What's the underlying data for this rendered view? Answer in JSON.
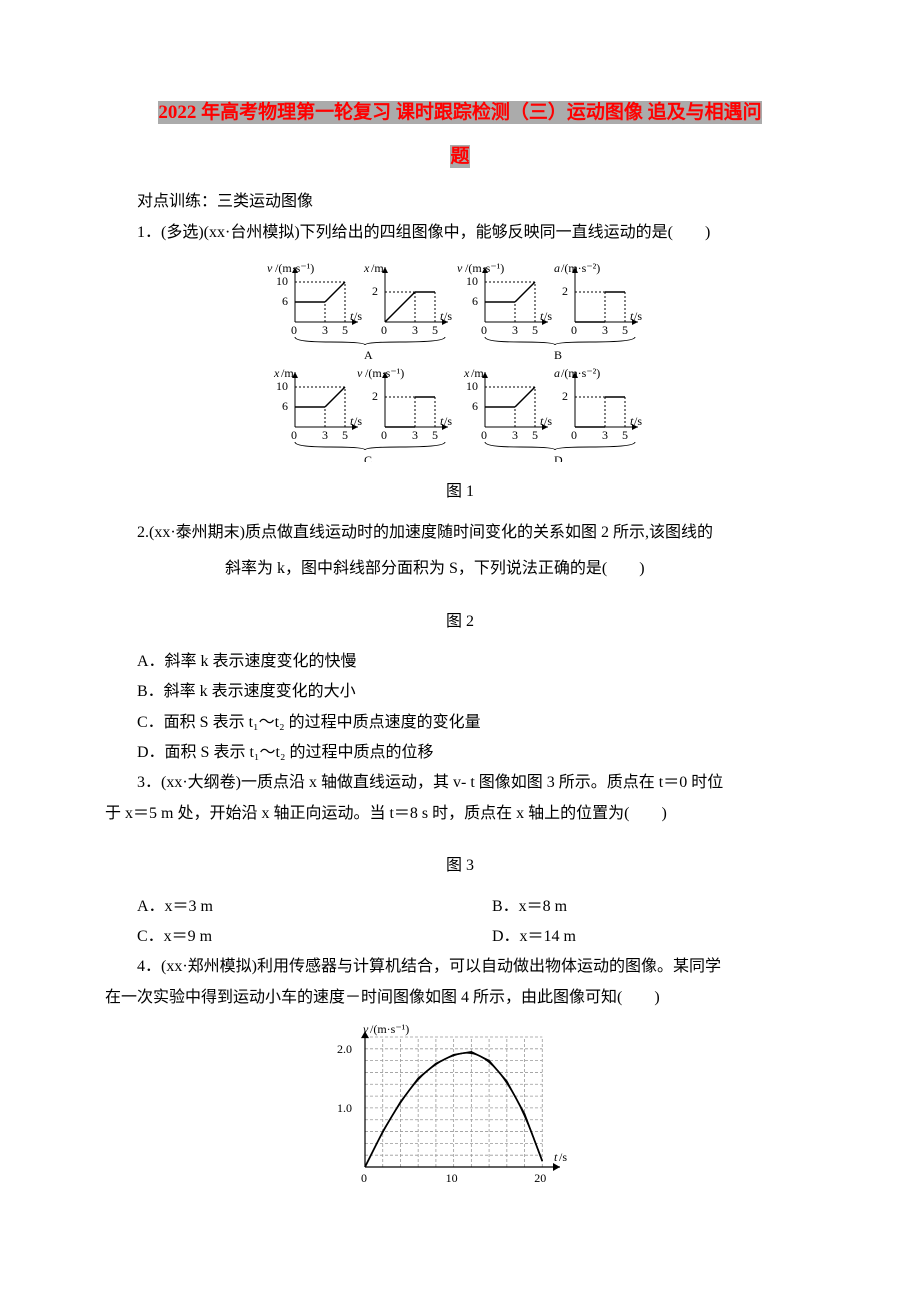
{
  "title": {
    "line1": "2022 年高考物理第一轮复习 课时跟踪检测（三）运动图像 追及与相遇问",
    "line2": "题"
  },
  "section_heading": "对点训练：三类运动图像",
  "q1": {
    "text": "1．(多选)(xx·台州模拟)下列给出的四组图像中，能够反映同一直线运动的是(　　)",
    "figure_label": "图 1",
    "panels": {
      "A": [
        {
          "type": "vt",
          "xlabel": "t/s",
          "ylabel": "v/(m·s⁻¹)",
          "xticks": [
            0,
            3,
            5
          ],
          "yticks": [
            6,
            10
          ],
          "segments": [
            [
              [
                0,
                6
              ],
              [
                3,
                6
              ]
            ],
            [
              [
                3,
                6
              ],
              [
                5,
                10
              ]
            ]
          ]
        },
        {
          "type": "xt",
          "xlabel": "t/s",
          "ylabel": "x/m",
          "xticks": [
            0,
            3,
            5
          ],
          "yticks": [
            2
          ],
          "segments": [
            [
              [
                0,
                0
              ],
              [
                3,
                2
              ]
            ],
            [
              [
                3,
                2
              ],
              [
                5,
                2
              ]
            ]
          ]
        }
      ],
      "B": [
        {
          "type": "vt",
          "xlabel": "t/s",
          "ylabel": "v/(m·s⁻¹)",
          "xticks": [
            0,
            3,
            5
          ],
          "yticks": [
            6,
            10
          ],
          "segments": [
            [
              [
                0,
                6
              ],
              [
                3,
                6
              ]
            ],
            [
              [
                3,
                6
              ],
              [
                5,
                10
              ]
            ]
          ]
        },
        {
          "type": "at",
          "xlabel": "t/s",
          "ylabel": "a/(m·s⁻²)",
          "xticks": [
            0,
            3,
            5
          ],
          "yticks": [
            2
          ],
          "segments": [
            [
              [
                0,
                0
              ],
              [
                3,
                0
              ]
            ],
            [
              [
                3,
                2
              ],
              [
                5,
                2
              ]
            ]
          ]
        }
      ],
      "C": [
        {
          "type": "xt",
          "xlabel": "t/s",
          "ylabel": "x/m",
          "xticks": [
            0,
            3,
            5
          ],
          "yticks": [
            6,
            10
          ],
          "segments": [
            [
              [
                0,
                6
              ],
              [
                3,
                6
              ]
            ],
            [
              [
                3,
                6
              ],
              [
                5,
                10
              ]
            ]
          ]
        },
        {
          "type": "vt",
          "xlabel": "t/s",
          "ylabel": "v/(m·s⁻¹)",
          "xticks": [
            0,
            3,
            5
          ],
          "yticks": [
            2
          ],
          "segments": [
            [
              [
                0,
                0
              ],
              [
                3,
                0
              ]
            ],
            [
              [
                3,
                2
              ],
              [
                5,
                2
              ]
            ]
          ]
        }
      ],
      "D": [
        {
          "type": "xt",
          "xlabel": "t/s",
          "ylabel": "x/m",
          "xticks": [
            0,
            3,
            5
          ],
          "yticks": [
            6,
            10
          ],
          "segments": [
            [
              [
                0,
                6
              ],
              [
                3,
                6
              ]
            ],
            [
              [
                3,
                6
              ],
              [
                5,
                10
              ]
            ]
          ]
        },
        {
          "type": "at",
          "xlabel": "t/s",
          "ylabel": "a/(m·s⁻²)",
          "xticks": [
            0,
            3,
            5
          ],
          "yticks": [
            2
          ],
          "segments": [
            [
              [
                0,
                0
              ],
              [
                3,
                0
              ]
            ],
            [
              [
                3,
                2
              ],
              [
                5,
                2
              ]
            ]
          ]
        }
      ]
    }
  },
  "q2": {
    "line1": "2.(xx·泰州期末)质点做直线运动时的加速度随时间变化的关系如图 2 所示,该图线的",
    "line2": "斜率为 k，图中斜线部分面积为 S，下列说法正确的是(　　)",
    "figure_label": "图 2",
    "optA": "A．斜率 k 表示速度变化的快慢",
    "optB": "B．斜率 k 表示速度变化的大小",
    "optC": "C．面积 S 表示 t₁～t₂ 的过程中质点速度的变化量",
    "optD": "D．面积 S 表示 t₁～t₂ 的过程中质点的位移"
  },
  "q3": {
    "line1": "3．(xx·大纲卷)一质点沿 x 轴做直线运动，其 v- t 图像如图 3 所示。质点在 t＝0 时位",
    "line2": "于 x＝5 m 处，开始沿 x 轴正向运动。当 t＝8 s 时，质点在 x 轴上的位置为(　　)",
    "figure_label": "图 3",
    "optA": "A．x＝3 m",
    "optB": "B．x＝8 m",
    "optC": "C．x＝9 m",
    "optD": "D．x＝14 m"
  },
  "q4": {
    "line1": "4．(xx·郑州模拟)利用传感器与计算机结合，可以自动做出物体运动的图像。某同学",
    "line2": "在一次实验中得到运动小车的速度－时间图像如图 4 所示，由此图像可知(　　)",
    "chart": {
      "type": "line",
      "xlabel": "t/s",
      "ylabel": "v/(m·s⁻¹)",
      "xlim": [
        0,
        22
      ],
      "ylim": [
        0,
        2.2
      ],
      "xticks": [
        0,
        10,
        20
      ],
      "yticks": [
        1.0,
        2.0
      ],
      "grid_step_x": 2,
      "grid_step_y": 0.2,
      "grid_color": "#999999",
      "axis_color": "#000000",
      "points": [
        [
          0,
          0
        ],
        [
          2,
          0.6
        ],
        [
          4,
          1.1
        ],
        [
          6,
          1.5
        ],
        [
          8,
          1.75
        ],
        [
          10,
          1.9
        ],
        [
          12,
          1.95
        ],
        [
          14,
          1.8
        ],
        [
          16,
          1.45
        ],
        [
          18,
          0.9
        ],
        [
          20,
          0.1
        ]
      ]
    }
  },
  "colors": {
    "title_text": "#ff0000",
    "title_bg": "#ababab",
    "text": "#000000",
    "axis": "#000000",
    "dash": "#000000",
    "grid_dash": "#999999",
    "brace": "#000000"
  }
}
